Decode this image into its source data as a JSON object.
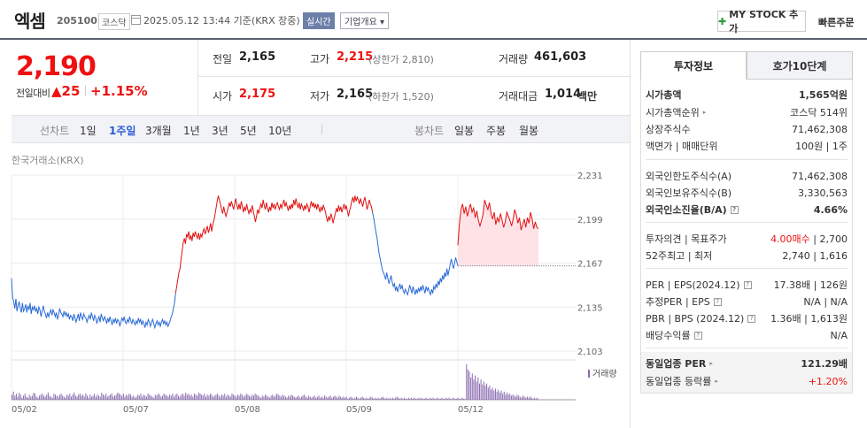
{
  "header": {
    "stock_name": "엑셈",
    "stock_code": "205100",
    "market": "코스닥",
    "timestamp": "2025.05.12 13:44 기준(KRX 장중)",
    "realtime_badge": "실시간",
    "company_info_label": "기업개요 ▾",
    "mystock_label": "MY STOCK 추가",
    "quick_order_label": "빠른주문"
  },
  "price": {
    "current": "2,190",
    "change_label": "전일대비",
    "change": "▲25",
    "change_pct": "+1.15%"
  },
  "quote": {
    "prev_close_label": "전일",
    "prev_close": "2,165",
    "high_label": "고가",
    "high": "2,215",
    "upper_limit": "(상한가 2,810)",
    "volume_label": "거래량",
    "volume": "461,603",
    "open_label": "시가",
    "open": "2,175",
    "low_label": "저가",
    "low": "2,165",
    "lower_limit": "(하한가 1,520)",
    "value_label": "거래대금",
    "value": "1,014",
    "value_unit": "백만"
  },
  "period_bar": {
    "line_label": "선차트",
    "line_periods": [
      "1일",
      "1주일",
      "3개월",
      "1년",
      "3년",
      "5년",
      "10년"
    ],
    "active_period": "1주일",
    "candle_label": "봉차트",
    "candle_periods": [
      "일봉",
      "주봉",
      "월봉"
    ]
  },
  "chart_source": "한국거래소(KRX)",
  "volume_legend": "거래량",
  "colors": {
    "up": "#e11111",
    "down": "#2a6ad7",
    "volume": "#8a6ab0",
    "fill": "#fde2e6"
  },
  "chart_data": {
    "type": "line",
    "x_ticks": [
      "05/02",
      "05/07",
      "05/08",
      "05/09",
      "05/12"
    ],
    "y_ticks": [
      2231,
      2199,
      2167,
      2135,
      2103
    ],
    "ylim": [
      2103,
      2231
    ],
    "prev_close": 2165,
    "series": [
      {
        "values": [
          2156,
          2142,
          2139,
          2134,
          2141,
          2132,
          2136,
          2139,
          2134,
          2131,
          2138,
          2132,
          2134,
          2137,
          2131,
          2136,
          2133,
          2138,
          2130,
          2135,
          2133,
          2136,
          2132,
          2134,
          2130,
          2135,
          2133,
          2128,
          2132,
          2136,
          2132,
          2130,
          2127,
          2131,
          2128,
          2131,
          2133,
          2129,
          2133,
          2131,
          2128,
          2131,
          2126,
          2129,
          2134,
          2131,
          2130,
          2128,
          2132,
          2129,
          2131,
          2128,
          2130,
          2126,
          2129,
          2128,
          2125,
          2130,
          2127,
          2124,
          2127,
          2130,
          2125,
          2131,
          2128,
          2126,
          2130,
          2128,
          2127,
          2124,
          2127,
          2129,
          2126,
          2131,
          2128,
          2125,
          2129,
          2127,
          2123,
          2126,
          2128,
          2124,
          2130,
          2127,
          2125,
          2128,
          2126,
          2123,
          2127,
          2124,
          2128,
          2125,
          2122,
          2126,
          2124,
          2127,
          2123,
          2126,
          2125,
          2121,
          2124,
          2127,
          2125,
          2128,
          2124,
          2123,
          2126,
          2124,
          2128,
          2125,
          2123,
          2126,
          2124,
          2122,
          2125,
          2123,
          2127,
          2124,
          2126,
          2122,
          2125,
          2123,
          2120,
          2124,
          2122,
          2126,
          2124,
          2121,
          2124,
          2126,
          2123,
          2120,
          2123,
          2125,
          2122,
          2124,
          2121,
          2124,
          2126,
          2123,
          2125,
          2122,
          2124,
          2121,
          2123,
          2125,
          2128,
          2130,
          2134,
          2138,
          2145,
          2150,
          2155,
          2160,
          2163,
          2170,
          2176,
          2182,
          2185,
          2181,
          2188,
          2186,
          2190,
          2184,
          2187,
          2183,
          2189,
          2186,
          2190,
          2187,
          2185,
          2189,
          2184,
          2188,
          2186,
          2190,
          2192,
          2188,
          2191,
          2194,
          2189,
          2192,
          2196,
          2190,
          2195,
          2198,
          2202,
          2207,
          2212,
          2216,
          2213,
          2210,
          2206,
          2203,
          2208,
          2204,
          2201,
          2204,
          2207,
          2211,
          2208,
          2212,
          2209,
          2206,
          2210,
          2214,
          2209,
          2206,
          2210,
          2206,
          2212,
          2208,
          2204,
          2208,
          2205,
          2210,
          2206,
          2203,
          2206,
          2204,
          2209,
          2205,
          2201,
          2197,
          2201,
          2206,
          2203,
          2207,
          2210,
          2207,
          2213,
          2209,
          2206,
          2211,
          2207,
          2204,
          2208,
          2205,
          2211,
          2207,
          2210,
          2206,
          2209,
          2211,
          2208,
          2206,
          2210,
          2207,
          2210,
          2213,
          2208,
          2211,
          2208,
          2205,
          2209,
          2206,
          2210,
          2207,
          2213,
          2209,
          2214,
          2210,
          2207,
          2211,
          2206,
          2210,
          2208,
          2205,
          2209,
          2206,
          2210,
          2208,
          2204,
          2208,
          2212,
          2208,
          2211,
          2207,
          2210,
          2206,
          2210,
          2207,
          2204,
          2208,
          2205,
          2209,
          2207,
          2204,
          2200,
          2197,
          2201,
          2198,
          2203,
          2200,
          2196,
          2200,
          2203,
          2207,
          2204,
          2209,
          2205,
          2208,
          2204,
          2207,
          2210,
          2206,
          2209,
          2205,
          2201,
          2205,
          2208,
          2212,
          2215,
          2211,
          2216,
          2212,
          2215,
          2213,
          2210,
          2214,
          2211,
          2208,
          2212,
          2215,
          2211,
          2206,
          2209,
          2213,
          2210,
          2208,
          2204,
          2200,
          2195,
          2190,
          2186,
          2180,
          2174,
          2170,
          2166,
          2162,
          2160,
          2158,
          2155,
          2160,
          2156,
          2152,
          2155,
          2158,
          2153,
          2150,
          2152,
          2147,
          2150,
          2146,
          2149,
          2152,
          2148,
          2151,
          2147,
          2145,
          2148,
          2146,
          2144,
          2147,
          2151,
          2148,
          2145,
          2150,
          2147,
          2144,
          2148,
          2145,
          2149,
          2146,
          2150,
          2147,
          2151,
          2148,
          2145,
          2150,
          2147,
          2149,
          2146,
          2144,
          2148,
          2145,
          2150,
          2148,
          2152,
          2149,
          2154,
          2151,
          2156,
          2153,
          2158,
          2155,
          2160,
          2157,
          2163,
          2158,
          2162,
          2166,
          2170,
          2166,
          2163,
          2167,
          2171,
          2168,
          2165
        ],
        "color_rule": "red when above previous close, blue when below"
      },
      {
        "name": "",
        "values": [
          2180,
          2196,
          2206,
          2210,
          2203,
          2208,
          2201,
          2206,
          2210,
          2204,
          2207,
          2200,
          2205,
          2198,
          2194,
          2198,
          2203,
          2213,
          2209,
          2206,
          2211,
          2203,
          2199,
          2204,
          2195,
          2200,
          2197,
          2203,
          2198,
          2193,
          2197,
          2204,
          2201,
          2198,
          2194,
          2199,
          2206,
          2202,
          2196,
          2200,
          2191,
          2195,
          2199,
          2193,
          2200,
          2196,
          2204,
          2199,
          2192,
          2197,
          2193,
          2192
        ],
        "color_rule": "intraday (05/12) segment, red with pink fill above previous close"
      }
    ],
    "volume": [
      5,
      8,
      4,
      6,
      3,
      7,
      5,
      2,
      4,
      6,
      3,
      2,
      5,
      3,
      4,
      7,
      6,
      3,
      2,
      4,
      5,
      6,
      4,
      3,
      5,
      7,
      4,
      3,
      2,
      6,
      5,
      4,
      3,
      5,
      6,
      4,
      3,
      2,
      5,
      4,
      6,
      3,
      5,
      7,
      4,
      3,
      5,
      6,
      4,
      5,
      3,
      6,
      4,
      2,
      5,
      3,
      4,
      6,
      3,
      5,
      4,
      3,
      7,
      5,
      4,
      6,
      3,
      4,
      5,
      6,
      3,
      4,
      5,
      7,
      6,
      5,
      4,
      6,
      3,
      5,
      4,
      6,
      5,
      3,
      4,
      2,
      3,
      5,
      4,
      6,
      3,
      5,
      4,
      3,
      6,
      5,
      4,
      3,
      2,
      5,
      4,
      6,
      5,
      3,
      4,
      6,
      5,
      4,
      3,
      5,
      4,
      6,
      3,
      5,
      6,
      4,
      3,
      5,
      6,
      4,
      7,
      5,
      6,
      4,
      5,
      3,
      6,
      5,
      4,
      7,
      6,
      5,
      4,
      6,
      3,
      5,
      4,
      6,
      5,
      3,
      4,
      5,
      6,
      4,
      3,
      5,
      4,
      6,
      3,
      5,
      4,
      3,
      6,
      5,
      4,
      3,
      5,
      4,
      6,
      5,
      3,
      4,
      6,
      5,
      4,
      3,
      5,
      4,
      6,
      5,
      4,
      3,
      2,
      4,
      3,
      5,
      4,
      3,
      2,
      4,
      5,
      3,
      4,
      6,
      5,
      4,
      3,
      5,
      4,
      3,
      2,
      4,
      3,
      5,
      4,
      3,
      2,
      3,
      4,
      2,
      3,
      4,
      5,
      3,
      2,
      4,
      3,
      2,
      3,
      4,
      2,
      3,
      4,
      2,
      3,
      2,
      4,
      3,
      2,
      3,
      4,
      2,
      3,
      4,
      3,
      2,
      4,
      3,
      2,
      3,
      2,
      3,
      1,
      2,
      3,
      2,
      1,
      2,
      3,
      2,
      1,
      2,
      3,
      2,
      1,
      2,
      1,
      2,
      3,
      2,
      1,
      2,
      1,
      2,
      1,
      2,
      3,
      2,
      1,
      2,
      1,
      2,
      1,
      2,
      1,
      2,
      3,
      2,
      1,
      2,
      1,
      2,
      1,
      1,
      2,
      1,
      2,
      1,
      2,
      1,
      1,
      2,
      1,
      2,
      1,
      1,
      2,
      1,
      1,
      2,
      1,
      2,
      1,
      1,
      2,
      1,
      1,
      2,
      1,
      1,
      2,
      1,
      2,
      1,
      1,
      2,
      1,
      1,
      2,
      1,
      1,
      2,
      1,
      1,
      35,
      30,
      28,
      22,
      26,
      20,
      24,
      18,
      22,
      16,
      20,
      15,
      18,
      14,
      16,
      12,
      14,
      10,
      12,
      9,
      11,
      8,
      10,
      7,
      9,
      6,
      8,
      5,
      7,
      5,
      6,
      4,
      5,
      4,
      3,
      5,
      4,
      3,
      2,
      4,
      3,
      2,
      3,
      2,
      3,
      2,
      1,
      2,
      1,
      2
    ]
  },
  "invest_panel": {
    "tabs": [
      "투자정보",
      "호가10단계"
    ],
    "rows": [
      {
        "label": "시가총액",
        "value": "1,565억원",
        "bold": true
      },
      {
        "label": "시가총액순위",
        "value": "코스닥 514위"
      },
      {
        "label": "상장주식수",
        "value": "71,462,308"
      },
      {
        "label": "액면가 | 매매단위",
        "value": "100원 | 1주"
      },
      {
        "label": "외국인한도주식수(A)",
        "value": "71,462,308"
      },
      {
        "label": "외국인보유주식수(B)",
        "value": "3,330,563"
      },
      {
        "label": "외국인소진율(B/A)",
        "value": "4.66%",
        "bold": true
      },
      {
        "label": "투자의견 | 목표주가",
        "value_red": "4.00매수",
        "value": " | 2,700"
      },
      {
        "label": "52주최고 | 최저",
        "value": "2,740 | 1,616"
      },
      {
        "label": "PER | EPS(2024.12)",
        "value": "17.38배 | 126원"
      },
      {
        "label": "추정PER | EPS",
        "value": "N/A | N/A"
      },
      {
        "label": "PBR | BPS (2024.12)",
        "value": "1.36배 | 1,613원"
      },
      {
        "label": "배당수익률",
        "value": "N/A"
      },
      {
        "label": "동일업종 PER",
        "value": "121.29배",
        "bold": true
      },
      {
        "label": "동일업종 등락률",
        "value": "+1.20%",
        "red": true
      }
    ]
  }
}
